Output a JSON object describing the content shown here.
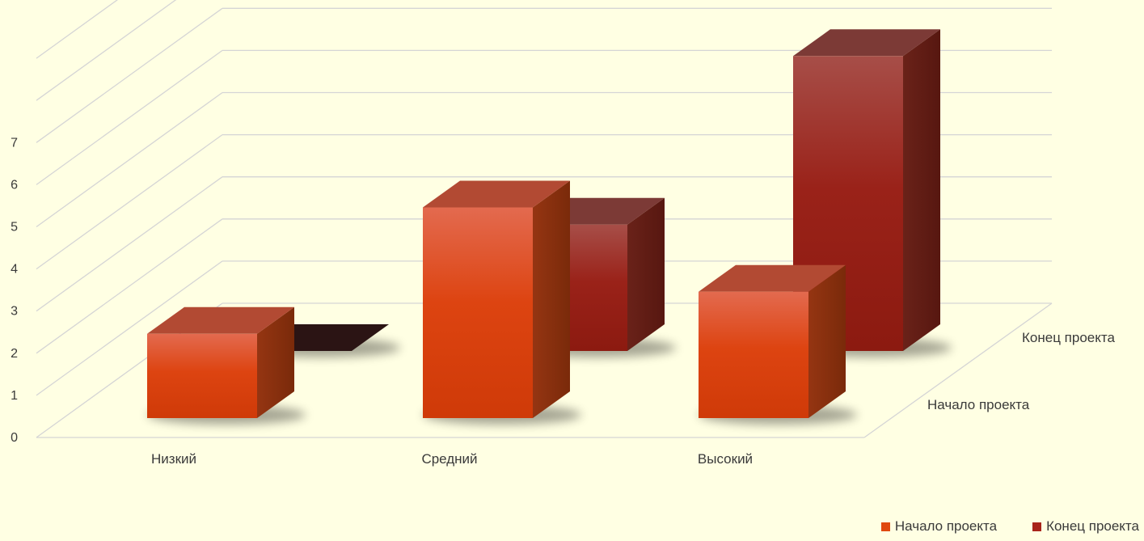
{
  "chart_data": {
    "type": "bar",
    "categories": [
      "Низкий",
      "Средний",
      "Высокий"
    ],
    "series": [
      {
        "name": "Начало проекта",
        "values": [
          2,
          5,
          3
        ],
        "color": "#e0480f"
      },
      {
        "name": "Конец проекта",
        "values": [
          0,
          3,
          7
        ],
        "color": "#a8241a"
      }
    ],
    "y_ticks": [
      "0",
      "1",
      "2",
      "3",
      "4",
      "5",
      "6",
      "7"
    ],
    "ylim": [
      0,
      7
    ],
    "depth_labels": [
      "Начало проекта",
      "Конец проекта"
    ],
    "title": "",
    "xlabel": "",
    "ylabel": "",
    "legend_position": "bottom-right",
    "grid": true,
    "background": "#ffffe3"
  }
}
